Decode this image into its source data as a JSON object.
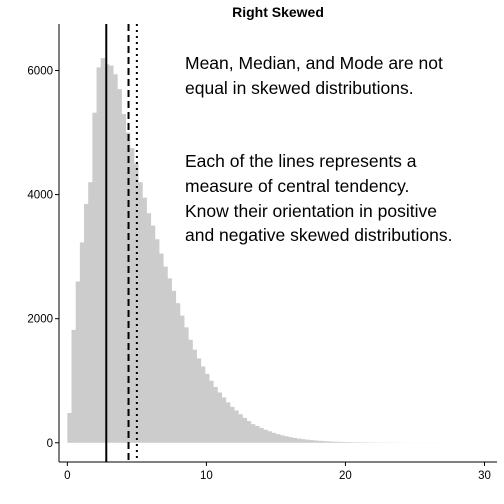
{
  "chart_data": {
    "type": "bar",
    "title": "Right Skewed",
    "xlabel": "",
    "ylabel": "",
    "xlim": [
      -0.6,
      30.9
    ],
    "ylim": [
      -310,
      6750
    ],
    "x_ticks": [
      0,
      10,
      20,
      30
    ],
    "x_tick_labels": [
      "0",
      "10",
      "20",
      "30"
    ],
    "y_ticks": [
      0,
      2000,
      4000,
      6000
    ],
    "y_tick_labels": [
      "0",
      "2000",
      "4000",
      "6000"
    ],
    "grid": false,
    "bin_width": 0.3,
    "bins_start": 0.0,
    "counts": [
      480,
      1820,
      2600,
      3230,
      3850,
      4200,
      5320,
      6050,
      6200,
      6100,
      6080,
      5940,
      5700,
      5300,
      5000,
      4750,
      4500,
      4200,
      3950,
      3700,
      3500,
      3280,
      3050,
      2840,
      2650,
      2450,
      2250,
      2050,
      1860,
      1660,
      1500,
      1360,
      1230,
      1110,
      1000,
      900,
      810,
      730,
      650,
      580,
      520,
      460,
      400,
      350,
      300,
      270,
      240,
      210,
      185,
      160,
      140,
      120,
      105,
      90,
      78,
      67,
      58,
      50,
      43,
      37,
      32,
      28,
      24,
      20,
      17,
      14,
      12,
      10,
      9,
      8,
      7,
      6,
      5,
      4,
      4,
      3,
      3,
      2,
      2,
      2,
      1,
      1,
      1,
      1,
      1,
      1,
      1,
      1,
      1,
      1,
      0,
      0,
      0,
      0,
      0,
      0,
      0,
      0,
      0,
      0,
      0,
      0,
      0,
      0,
      0,
      0,
      0,
      0,
      0,
      0,
      0,
      0,
      0,
      0,
      0,
      0,
      0,
      0,
      0,
      0,
      0,
      0,
      0,
      0,
      0,
      0,
      0,
      0,
      0,
      0,
      0,
      0,
      0,
      0,
      0,
      0
    ],
    "bar_color": "#cccccc",
    "vlines": [
      {
        "x": 2.8,
        "style": "solid"
      },
      {
        "x": 4.4,
        "style": "dashed"
      },
      {
        "x": 5.0,
        "style": "dotted"
      }
    ],
    "annotations": [
      "Mean, Median, and Mode are not",
      "equal in skewed distributions.",
      "Each of the lines represents a",
      "measure of central tendency.",
      "Know their orientation in positive",
      "and negative skewed distributions."
    ]
  }
}
